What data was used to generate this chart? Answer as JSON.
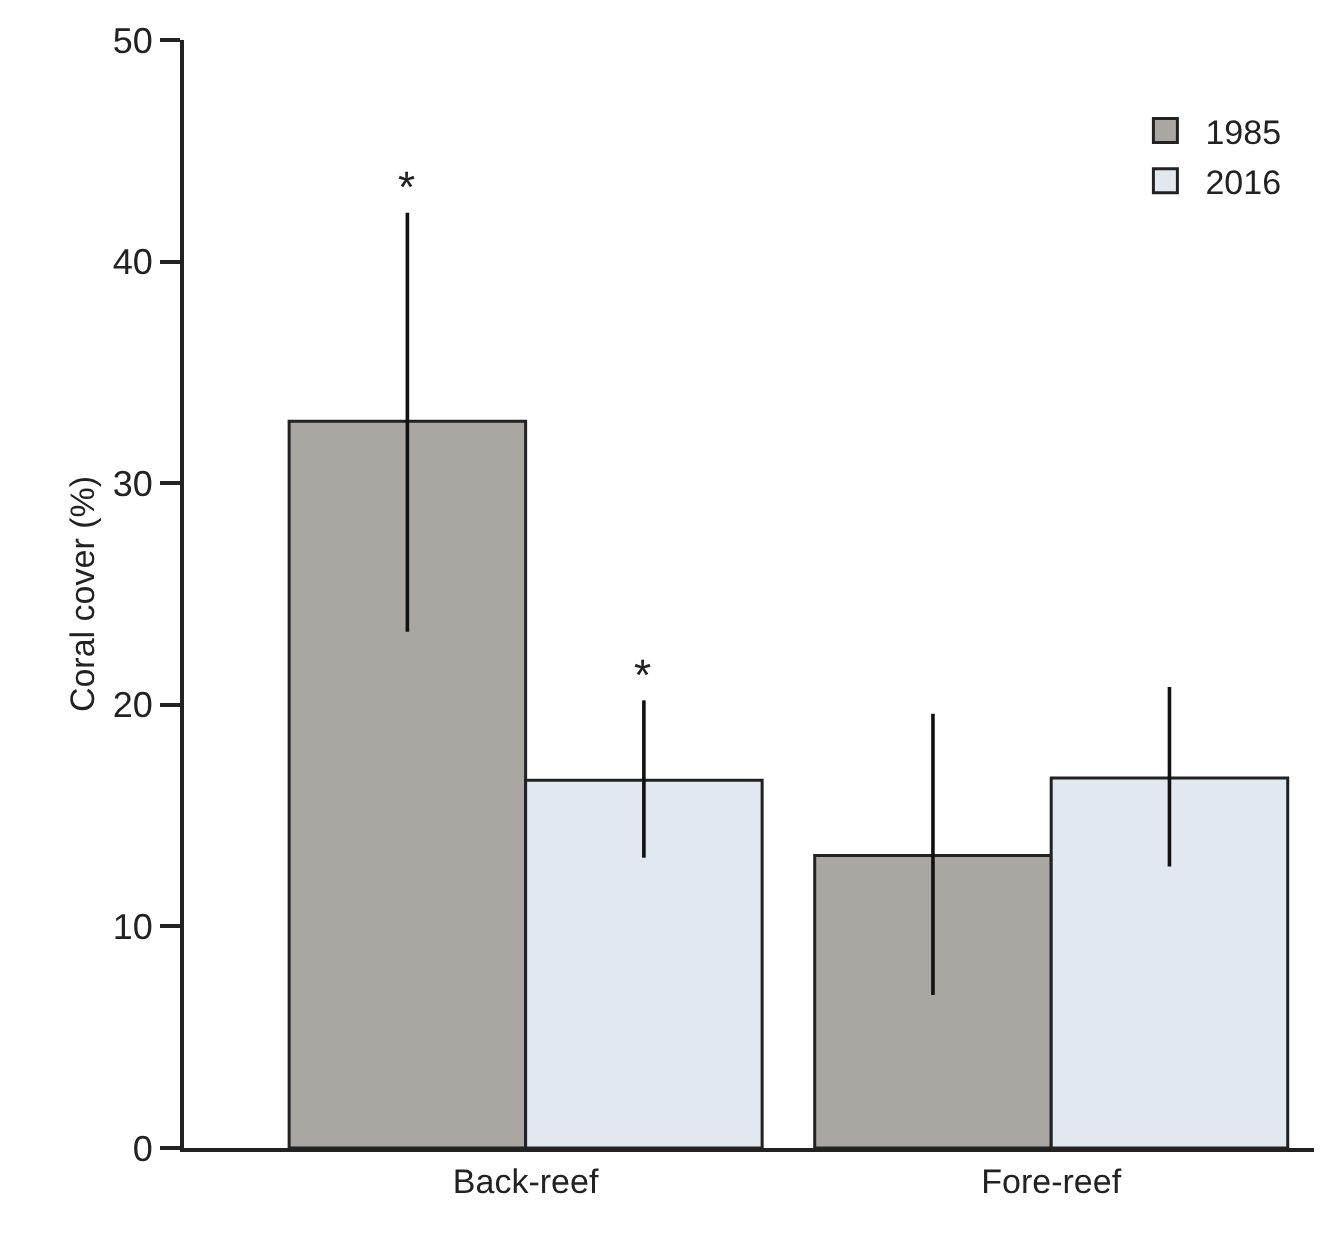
{
  "chart_data": {
    "type": "bar",
    "ylabel": "Coral cover (%)",
    "categories": [
      "Back-reef",
      "Fore-reef"
    ],
    "series": [
      {
        "name": "1985",
        "color": "#aaa7a2",
        "values": [
          32.8,
          13.2
        ],
        "errors": [
          [
            23.3,
            42.2
          ],
          [
            6.9,
            19.6
          ]
        ]
      },
      {
        "name": "2016",
        "color": "#e1e8ef",
        "values": [
          16.6,
          16.7
        ],
        "errors": [
          [
            13.1,
            20.2
          ],
          [
            12.7,
            20.8
          ]
        ]
      }
    ],
    "annotations": [
      "*",
      "*"
    ],
    "ylim": [
      0,
      50
    ],
    "yticks": [
      0,
      10,
      20,
      30,
      40,
      50
    ],
    "grid": false,
    "legend": "top right"
  }
}
